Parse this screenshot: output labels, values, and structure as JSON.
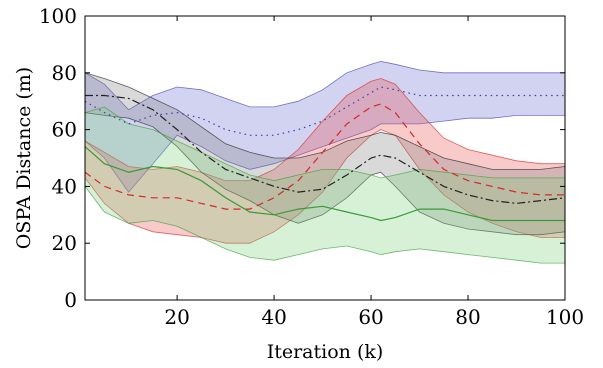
{
  "chart_data": {
    "type": "area",
    "title": "",
    "xlabel": "Iteration (k)",
    "ylabel": "OSPA Distance (m)",
    "xlim": [
      1,
      100
    ],
    "ylim": [
      0,
      100
    ],
    "xticks": [
      20,
      40,
      60,
      80,
      100
    ],
    "yticks": [
      0,
      20,
      40,
      60,
      80,
      100
    ],
    "grid": false,
    "legend": "none",
    "x": [
      1,
      5,
      10,
      15,
      20,
      25,
      30,
      35,
      40,
      45,
      50,
      55,
      60,
      62,
      65,
      70,
      75,
      80,
      85,
      90,
      95,
      100
    ],
    "series": [
      {
        "color": "#3d3db5",
        "fill": "#6b6bd0",
        "line_style": "dotted",
        "mean": [
          70,
          66,
          62,
          65,
          66,
          64,
          60,
          58,
          58,
          60,
          63,
          68,
          73,
          75,
          74,
          72,
          72,
          72,
          72,
          72,
          72,
          72
        ],
        "upper": [
          80,
          76,
          67,
          72,
          75,
          74,
          71,
          68,
          68,
          70,
          74,
          80,
          83,
          84,
          83,
          81,
          80,
          80,
          80,
          80,
          80,
          80
        ],
        "lower": [
          56,
          50,
          38,
          48,
          58,
          54,
          49,
          46,
          48,
          51,
          54,
          57,
          60,
          62,
          62,
          62,
          63,
          64,
          64,
          65,
          65,
          65
        ]
      },
      {
        "color": "#d22a2a",
        "fill": "#e85050",
        "line_style": "dashed",
        "mean": [
          45,
          40,
          37,
          36,
          36,
          34,
          32,
          32,
          36,
          42,
          52,
          62,
          68,
          69,
          66,
          55,
          46,
          42,
          40,
          38,
          37,
          37
        ],
        "upper": [
          56,
          52,
          47,
          46,
          47,
          45,
          42,
          42,
          46,
          53,
          63,
          72,
          77,
          78,
          76,
          66,
          57,
          53,
          51,
          49,
          48,
          48
        ],
        "lower": [
          43,
          34,
          27,
          24,
          23,
          22,
          20,
          20,
          24,
          30,
          38,
          50,
          58,
          60,
          58,
          46,
          37,
          31,
          27,
          24,
          22,
          22
        ]
      },
      {
        "color": "#222222",
        "fill": "#808080",
        "line_style": "dash-dot",
        "mean": [
          72,
          72,
          71,
          67,
          60,
          52,
          46,
          43,
          40,
          38,
          39,
          44,
          50,
          51,
          50,
          45,
          40,
          37,
          35,
          34,
          35,
          36
        ],
        "upper": [
          80,
          78,
          75,
          71,
          67,
          61,
          55,
          52,
          50,
          50,
          52,
          56,
          58,
          59,
          58,
          54,
          50,
          48,
          46,
          46,
          46,
          47
        ],
        "lower": [
          66,
          65,
          64,
          61,
          54,
          45,
          39,
          35,
          30,
          27,
          30,
          36,
          44,
          45,
          40,
          31,
          27,
          25,
          24,
          23,
          23,
          24
        ]
      },
      {
        "color": "#3a9a3a",
        "fill": "#7ad07a",
        "line_style": "solid",
        "mean": [
          54,
          48,
          45,
          47,
          46,
          42,
          36,
          31,
          30,
          32,
          33,
          31,
          29,
          28,
          29,
          32,
          32,
          30,
          28,
          28,
          28,
          28
        ],
        "upper": [
          66,
          68,
          62,
          60,
          56,
          52,
          48,
          44,
          42,
          44,
          46,
          46,
          44,
          43,
          44,
          46,
          45,
          44,
          43,
          43,
          43,
          43
        ],
        "lower": [
          40,
          31,
          27,
          28,
          26,
          22,
          18,
          15,
          14,
          16,
          18,
          19,
          17,
          16,
          17,
          18,
          17,
          16,
          15,
          14,
          13,
          13
        ]
      }
    ]
  }
}
